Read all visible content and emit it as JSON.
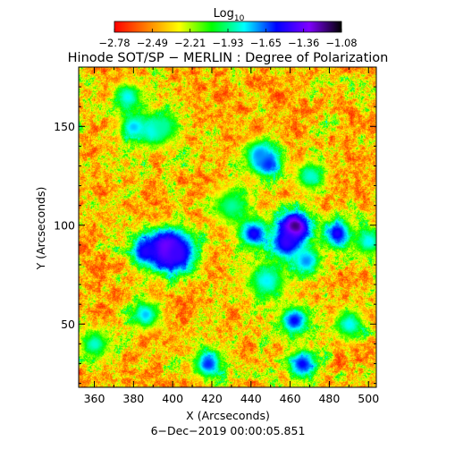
{
  "chart_data": {
    "type": "heatmap",
    "title": "Hinode SOT/SP − MERLIN : Degree of Polarization",
    "colorbar": {
      "label_main": "Log",
      "label_sub": "10",
      "ticks": [
        "−2.78",
        "−2.49",
        "−2.21",
        "−1.93",
        "−1.65",
        "−1.36",
        "−1.08"
      ],
      "range": [
        -2.78,
        -1.08
      ],
      "colors": [
        "#ff0000",
        "#ff7f00",
        "#ffff00",
        "#00ff00",
        "#00ffff",
        "#0000ff",
        "#8000ff",
        "#000000"
      ]
    },
    "xlabel": "X (Arcseconds)",
    "ylabel": "Y (Arcseconds)",
    "xlim": [
      352,
      504
    ],
    "ylim": [
      18,
      180
    ],
    "xticks": [
      "360",
      "380",
      "400",
      "420",
      "440",
      "460",
      "480",
      "500"
    ],
    "yticks": [
      "50",
      "100",
      "150"
    ],
    "timestamp": "6−Dec−2019 00:00:05.851",
    "hotspots": [
      {
        "x": 397,
        "y": 88,
        "v": -1.1,
        "r": 4.0
      },
      {
        "x": 402,
        "y": 86,
        "v": -1.45,
        "r": 4.0
      },
      {
        "x": 386,
        "y": 87,
        "v": -1.5,
        "r": 3.0
      },
      {
        "x": 462,
        "y": 99,
        "v": -1.08,
        "r": 3.5
      },
      {
        "x": 458,
        "y": 91,
        "v": -1.45,
        "r": 3.5
      },
      {
        "x": 448,
        "y": 132,
        "v": -1.5,
        "r": 3.0
      },
      {
        "x": 444,
        "y": 136,
        "v": -1.7,
        "r": 3.0
      },
      {
        "x": 380,
        "y": 150,
        "v": -1.75,
        "r": 3.0
      },
      {
        "x": 390,
        "y": 148,
        "v": -1.75,
        "r": 3.0
      },
      {
        "x": 377,
        "y": 165,
        "v": -1.8,
        "r": 3.0
      },
      {
        "x": 441,
        "y": 96,
        "v": -1.5,
        "r": 3.0
      },
      {
        "x": 484,
        "y": 96,
        "v": -1.5,
        "r": 3.0
      },
      {
        "x": 466,
        "y": 30,
        "v": -1.55,
        "r": 3.0
      },
      {
        "x": 462,
        "y": 52,
        "v": -1.55,
        "r": 3.0
      },
      {
        "x": 468,
        "y": 82,
        "v": -1.7,
        "r": 3.0
      },
      {
        "x": 418,
        "y": 30,
        "v": -1.6,
        "r": 3.0
      },
      {
        "x": 386,
        "y": 55,
        "v": -1.75,
        "r": 3.0
      },
      {
        "x": 448,
        "y": 72,
        "v": -1.8,
        "r": 4.0
      },
      {
        "x": 490,
        "y": 50,
        "v": -1.8,
        "r": 3.0
      },
      {
        "x": 360,
        "y": 40,
        "v": -1.85,
        "r": 3.0
      },
      {
        "x": 470,
        "y": 125,
        "v": -1.85,
        "r": 3.0
      },
      {
        "x": 500,
        "y": 92,
        "v": -1.8,
        "r": 3.0
      },
      {
        "x": 395,
        "y": 150,
        "v": -1.9,
        "r": 3.0
      },
      {
        "x": 430,
        "y": 110,
        "v": -1.9,
        "r": 4.0
      }
    ]
  }
}
